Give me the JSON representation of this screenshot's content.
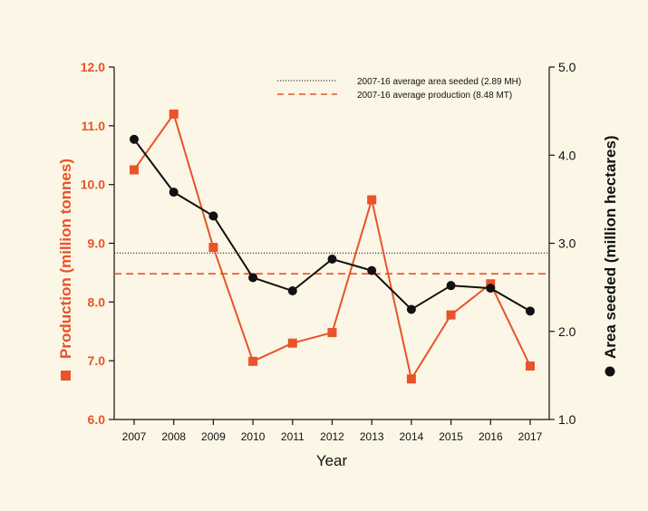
{
  "chart_data": {
    "type": "line",
    "xlabel": "Year",
    "categories": [
      "2007",
      "2008",
      "2009",
      "2010",
      "2011",
      "2012",
      "2013",
      "2014",
      "2015",
      "2016",
      "2017"
    ],
    "y_left": {
      "label": "Production (million tonnes)",
      "range": [
        6.0,
        12.0
      ],
      "ticks": [
        "6.0",
        "7.0",
        "8.0",
        "9.0",
        "10.0",
        "11.0",
        "12.0"
      ]
    },
    "y_right": {
      "label": "Area seeded (million hectares)",
      "range": [
        1.0,
        5.0
      ],
      "ticks": [
        "1.0",
        "2.0",
        "3.0",
        "4.0",
        "5.0"
      ]
    },
    "series": [
      {
        "key": "production",
        "axis": "left",
        "marker": "square",
        "color": "#e8532a",
        "values": [
          10.25,
          11.2,
          8.93,
          6.99,
          7.3,
          7.48,
          9.74,
          6.69,
          7.78,
          8.31,
          6.91
        ]
      },
      {
        "key": "area",
        "axis": "right",
        "marker": "circle",
        "color": "#111111",
        "values": [
          4.18,
          3.58,
          3.31,
          2.61,
          2.46,
          2.82,
          2.69,
          2.25,
          2.52,
          2.49,
          2.23
        ]
      }
    ],
    "reference_lines": [
      {
        "key": "avg_area",
        "axis": "right",
        "value": 2.89,
        "style": "dotted",
        "color": "#111111",
        "label": "2007-16 average area seeded (2.89 MH)"
      },
      {
        "key": "avg_prod",
        "axis": "left",
        "value": 8.48,
        "style": "dashed",
        "color": "#e8532a",
        "label": "2007-16 average production (8.48 MT)"
      }
    ]
  }
}
